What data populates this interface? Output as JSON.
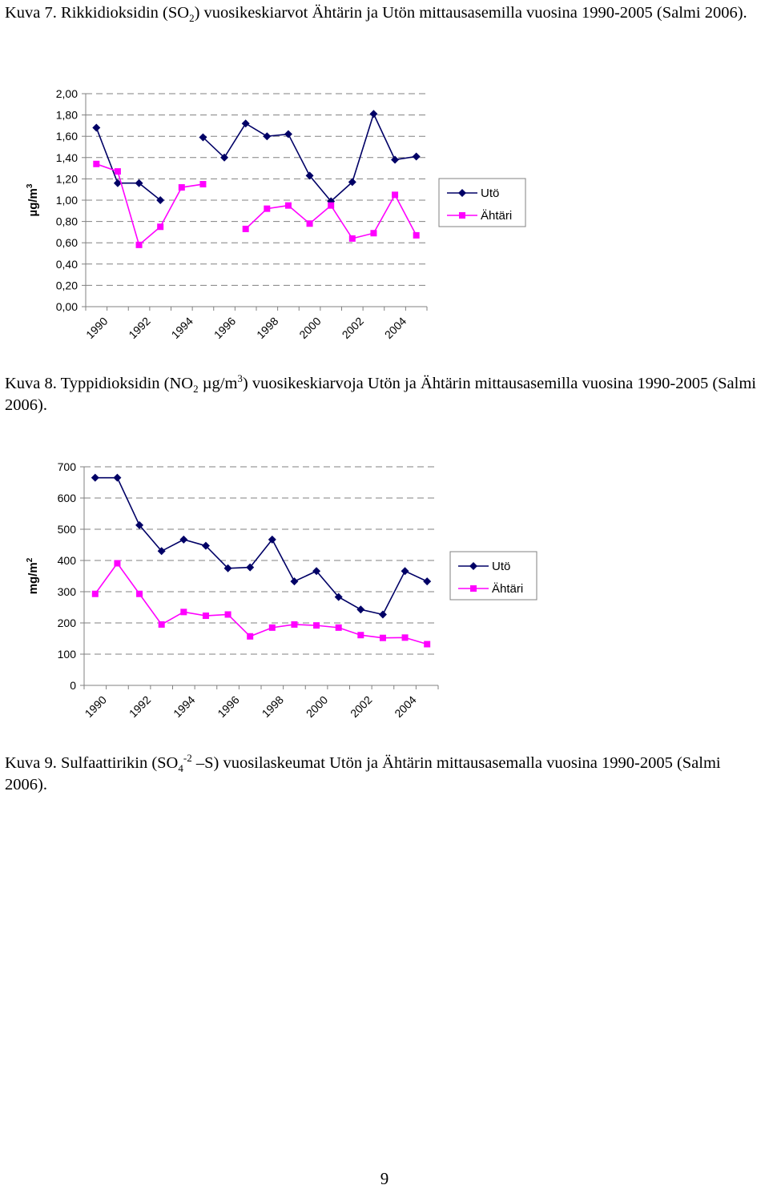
{
  "captions": {
    "fig7": {
      "pre": "Kuva 7. Rikkidioksidin (SO",
      "sub": "2",
      "post": ") vuosikeskiarvot Ähtärin ja Utön mittausasemilla vuosina 1990-2005 (Salmi 2006)."
    },
    "fig8": {
      "pre": "Kuva 8. Typpidioksidin (NO",
      "sub": "2",
      "mid": " µg/m",
      "sup": "3",
      "post": ") vuosikeskiarvoja Utön ja Ähtärin mittausasemilla vuosina 1990-2005 (Salmi 2006)."
    },
    "fig9": {
      "pre": "Kuva 9. Sulfaattirikin (SO",
      "sub": "4",
      "sup": "-2",
      "post": " –S) vuosilaskeumat Utön ja Ähtärin mittausasemalla vuosina 1990-2005 (Salmi 2006)."
    }
  },
  "page_number": "9",
  "colors": {
    "uto": "#000066",
    "ahtari": "#ff00ff",
    "grid": "#808080",
    "axis": "#808080"
  },
  "chart_data": [
    {
      "type": "line",
      "title": "",
      "ylabel": "µg/m³",
      "ylabel_base": "µg/m",
      "ylabel_sup": "3",
      "ylim": [
        0,
        2
      ],
      "y_ticks": [
        0,
        0.2,
        0.4,
        0.6,
        0.8,
        1.0,
        1.2,
        1.4,
        1.6,
        1.8,
        2.0
      ],
      "y_tick_labels": [
        "0,00",
        "0,20",
        "0,40",
        "0,60",
        "0,80",
        "1,00",
        "1,20",
        "1,40",
        "1,60",
        "1,80",
        "2,00"
      ],
      "x": [
        1990,
        1991,
        1992,
        1993,
        1994,
        1995,
        1996,
        1997,
        1998,
        1999,
        2000,
        2001,
        2002,
        2003,
        2004,
        2005
      ],
      "x_tick_labels": [
        "1990",
        "1992",
        "1994",
        "1996",
        "1998",
        "2000",
        "2002",
        "2004"
      ],
      "x_tick_years": [
        1990,
        1992,
        1994,
        1996,
        1998,
        2000,
        2002,
        2004
      ],
      "grid": true,
      "legend": "right",
      "series": [
        {
          "name": "Utö",
          "marker": "diamond",
          "values": [
            1.68,
            1.16,
            1.16,
            1.0,
            null,
            1.59,
            1.4,
            1.72,
            1.6,
            1.62,
            1.23,
            0.99,
            1.17,
            1.81,
            1.38,
            1.41
          ]
        },
        {
          "name": "Ähtäri",
          "marker": "square",
          "values": [
            1.34,
            1.27,
            0.58,
            0.75,
            1.12,
            1.15,
            null,
            0.73,
            0.92,
            0.95,
            0.78,
            0.95,
            0.64,
            0.69,
            1.05,
            0.67
          ]
        }
      ]
    },
    {
      "type": "line",
      "title": "",
      "ylabel": "mg/m²",
      "ylabel_base": "mg/m",
      "ylabel_sup": "2",
      "ylim": [
        0,
        700
      ],
      "y_ticks": [
        0,
        100,
        200,
        300,
        400,
        500,
        600,
        700
      ],
      "y_tick_labels": [
        "0",
        "100",
        "200",
        "300",
        "400",
        "500",
        "600",
        "700"
      ],
      "x": [
        1990,
        1991,
        1992,
        1993,
        1994,
        1995,
        1996,
        1997,
        1998,
        1999,
        2000,
        2001,
        2002,
        2003,
        2004,
        2005
      ],
      "x_tick_labels": [
        "1990",
        "1992",
        "1994",
        "1996",
        "1998",
        "2000",
        "2002",
        "2004"
      ],
      "x_tick_years": [
        1990,
        1992,
        1994,
        1996,
        1998,
        2000,
        2002,
        2004
      ],
      "grid": true,
      "legend": "right",
      "series": [
        {
          "name": "Utö",
          "marker": "diamond",
          "values": [
            665,
            665,
            513,
            430,
            467,
            447,
            375,
            378,
            467,
            333,
            366,
            283,
            243,
            227,
            366,
            333
          ]
        },
        {
          "name": "Ähtäri",
          "marker": "square",
          "values": [
            293,
            391,
            293,
            195,
            235,
            223,
            227,
            157,
            185,
            195,
            192,
            185,
            161,
            152,
            153,
            132
          ]
        }
      ]
    }
  ]
}
